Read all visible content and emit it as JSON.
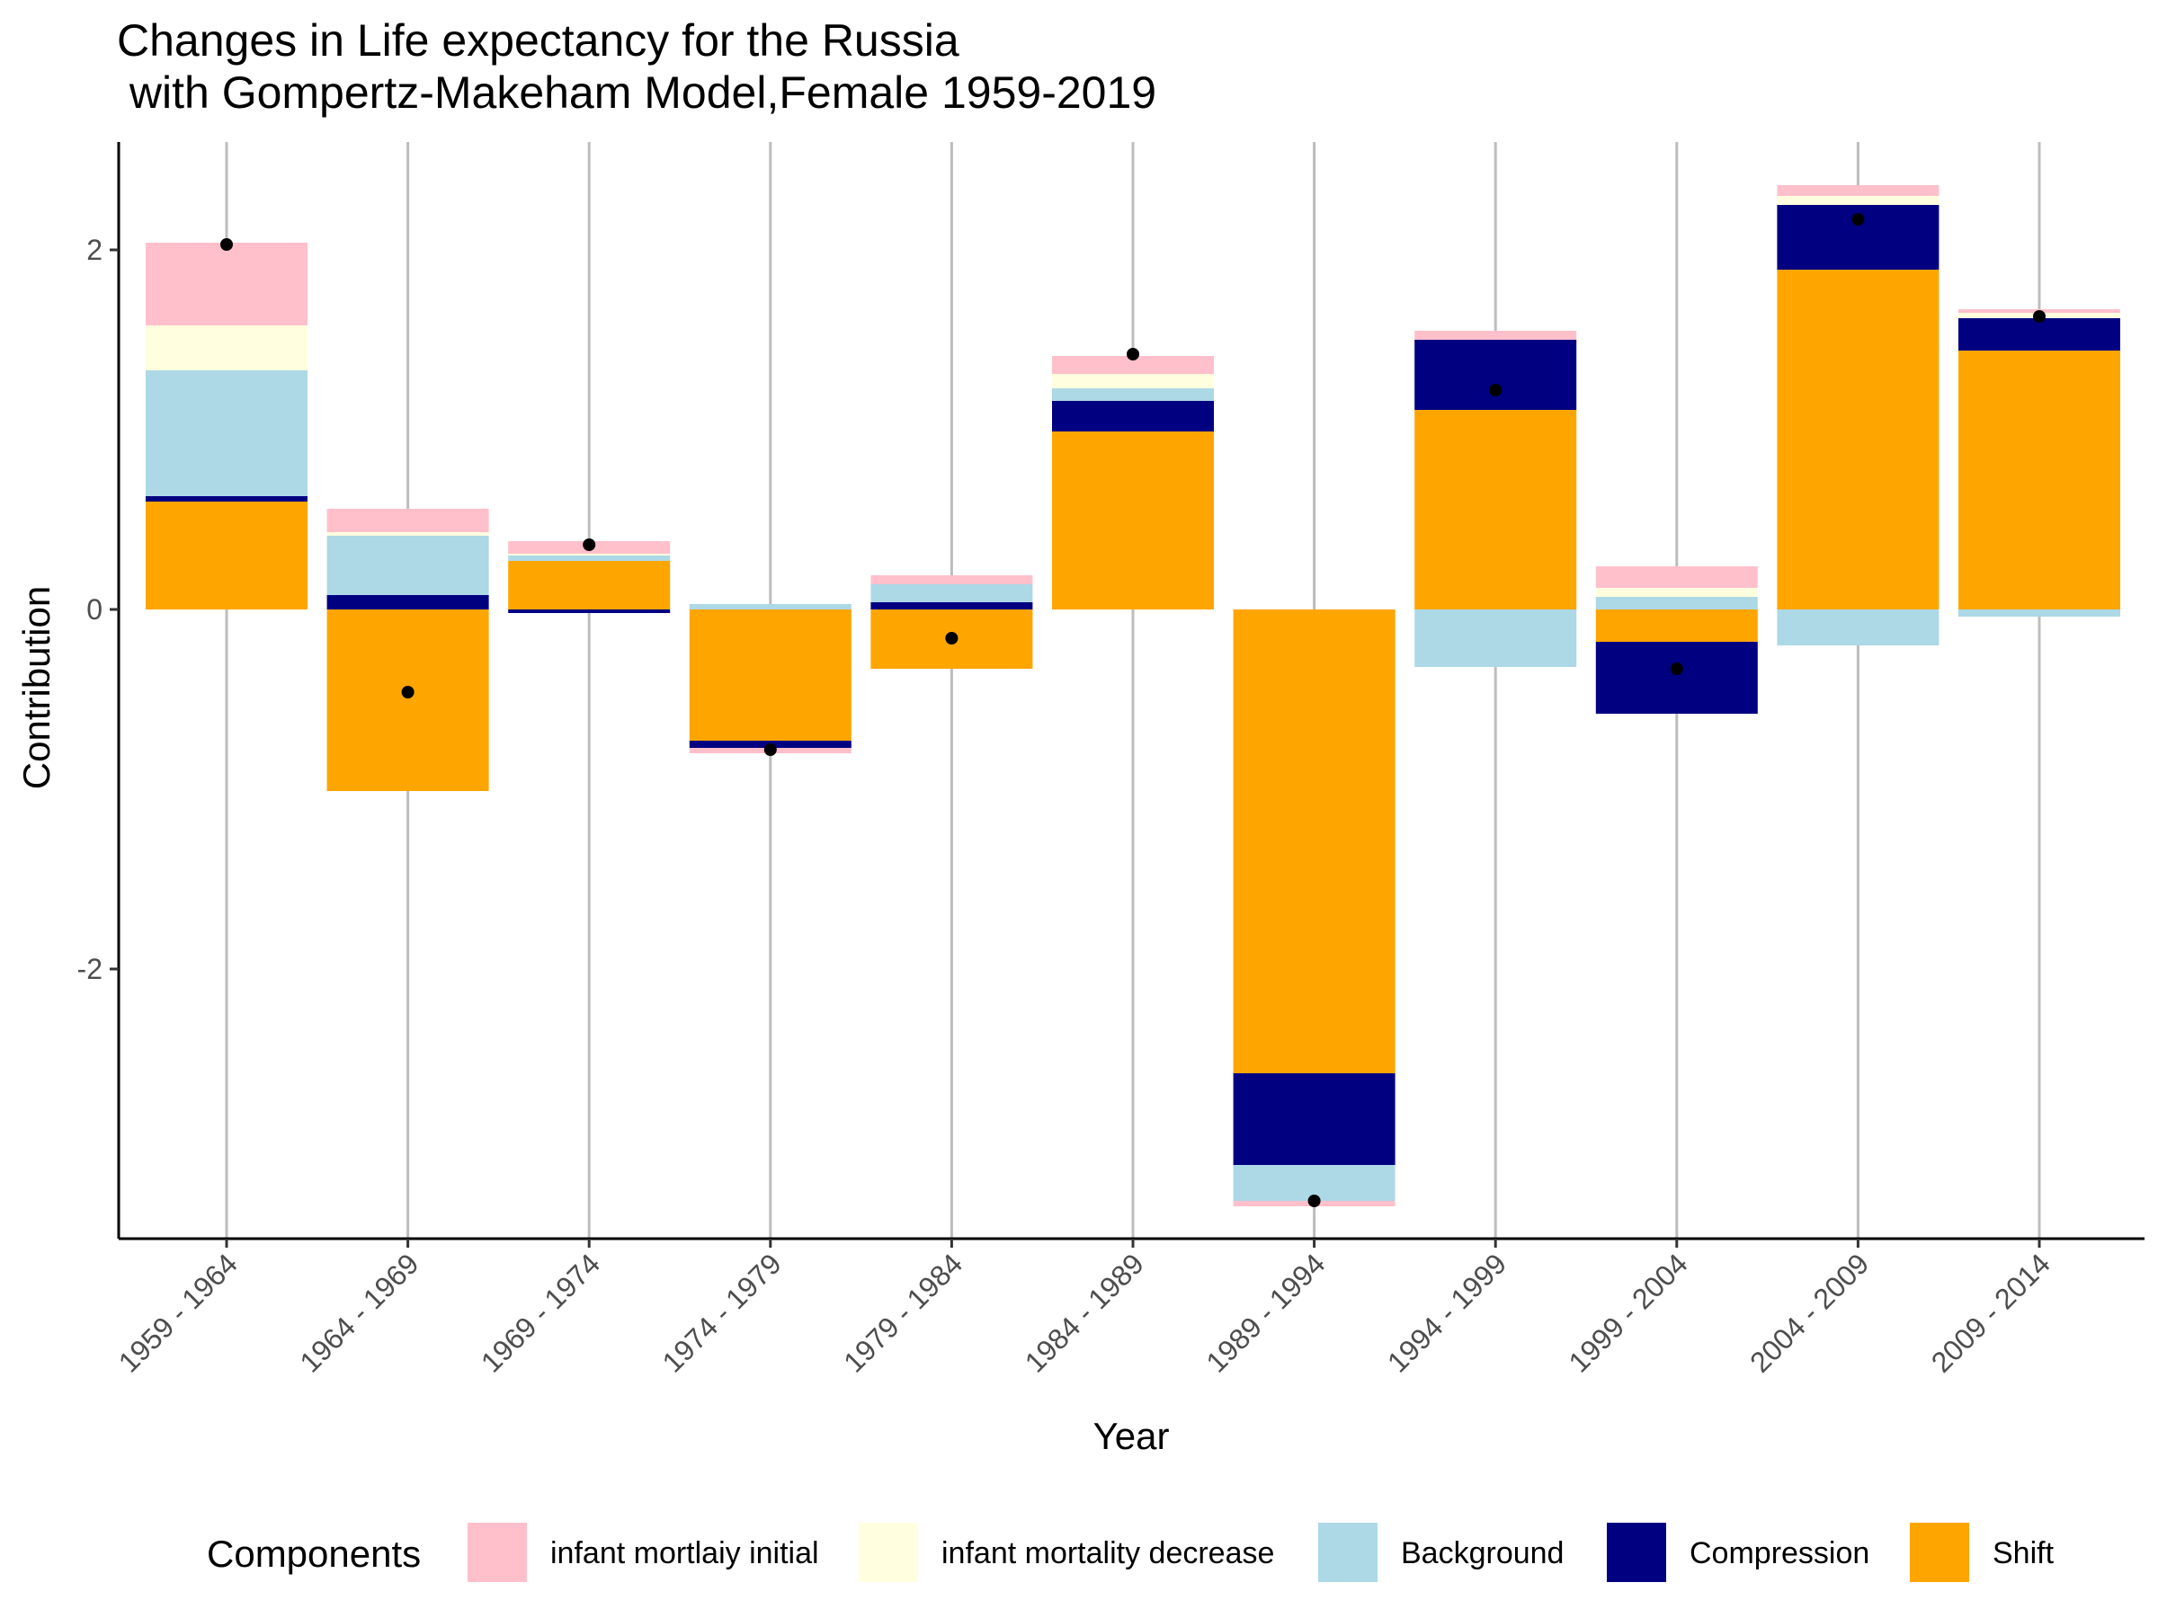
{
  "chart_data": {
    "type": "bar",
    "stacked": true,
    "title_line1": "Changes in Life expectancy for the Russia",
    "title_line2": " with Gompertz-Makeham Model,Female 1959-2019",
    "xlabel": "Year",
    "ylabel": "Contribution",
    "ylim": [
      -3.5,
      2.6
    ],
    "yticks": [
      -2,
      0,
      2
    ],
    "grid": "vertical major lines only",
    "legend_position": "bottom",
    "legend_title": "Components",
    "categories": [
      "1959 - 1964",
      "1964 - 1969",
      "1969 - 1974",
      "1974 - 1979",
      "1979 - 1984",
      "1984 - 1989",
      "1989 - 1994",
      "1994 - 1999",
      "1999 - 2004",
      "2004 - 2009",
      "2009 - 2014"
    ],
    "series": [
      {
        "name": "Shift",
        "color": "#FFA500",
        "values": [
          0.6,
          -1.01,
          0.27,
          -0.73,
          -0.33,
          0.99,
          -2.58,
          1.11,
          -0.18,
          1.89,
          1.44
        ]
      },
      {
        "name": "Compression",
        "color": "#000080",
        "values": [
          0.03,
          0.08,
          -0.02,
          -0.04,
          0.04,
          0.17,
          -0.51,
          0.39,
          -0.4,
          0.36,
          0.18
        ]
      },
      {
        "name": "Background",
        "color": "#ADD8E6",
        "values": [
          0.7,
          0.33,
          0.03,
          0.03,
          0.1,
          0.07,
          -0.2,
          -0.32,
          0.07,
          -0.2,
          -0.04
        ]
      },
      {
        "name": "infant mortality decrease",
        "color": "#FFFFE0",
        "values": [
          0.25,
          0.02,
          0.01,
          0.0,
          0.0,
          0.08,
          0.0,
          0.0,
          0.05,
          0.05,
          0.03
        ]
      },
      {
        "name": "infant mortlaiy initial",
        "color": "#FFC0CB",
        "values": [
          0.46,
          0.13,
          0.07,
          -0.03,
          0.05,
          0.1,
          -0.03,
          0.05,
          0.12,
          0.06,
          0.02
        ]
      }
    ],
    "total_points": [
      2.03,
      -0.46,
      0.36,
      -0.78,
      -0.16,
      1.42,
      -3.29,
      1.22,
      -0.33,
      2.17,
      1.63
    ],
    "legend_order": [
      "infant mortlaiy initial",
      "infant mortality decrease",
      "Background",
      "Compression",
      "Shift"
    ]
  }
}
